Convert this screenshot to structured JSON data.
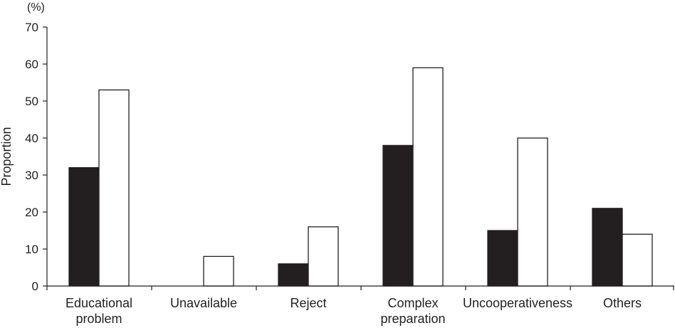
{
  "chart_data": {
    "type": "bar",
    "ylabel": "Proportion",
    "y_unit": "(%)",
    "ylim": [
      0,
      70
    ],
    "yticks": [
      0,
      10,
      20,
      30,
      40,
      50,
      60,
      70
    ],
    "categories": [
      [
        "Educational",
        "problem"
      ],
      [
        "Unavailable"
      ],
      [
        "Reject"
      ],
      [
        "Complex",
        "preparation"
      ],
      [
        "Uncooperativeness"
      ],
      [
        "Others"
      ]
    ],
    "series": [
      {
        "fill": "#231f20",
        "values": [
          32,
          0,
          6,
          38,
          15,
          21
        ]
      },
      {
        "fill": "#ffffff",
        "values": [
          53,
          8,
          16,
          59,
          40,
          14
        ]
      }
    ],
    "grid": false,
    "legend": "none"
  }
}
